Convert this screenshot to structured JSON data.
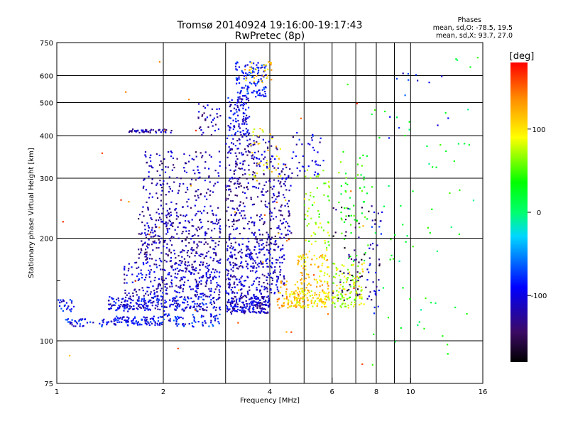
{
  "header": {
    "title": "Tromsø 20140924 19:16:00-19:17:43",
    "subtitle": "RwPretec (8p)",
    "stats_heading": "Phases",
    "stats_o": "mean, sd,O: -78.5, 19.5",
    "stats_x": "mean, sd,X:  93.7, 27.0"
  },
  "chart_data": {
    "type": "scatter",
    "xlabel": "Frequency [MHz]",
    "ylabel": "Stationary phase Virtual Height [km]",
    "x_scale": "log",
    "y_scale": "log",
    "xlim": [
      1,
      16
    ],
    "ylim": [
      75,
      750
    ],
    "x_ticks": [
      1,
      2,
      4,
      6,
      8,
      10,
      16
    ],
    "x_ticks_minor": [
      3,
      5,
      7,
      9
    ],
    "y_ticks": [
      75,
      100,
      200,
      300,
      400,
      500,
      600,
      750
    ],
    "y_ticks_minor": [
      150
    ],
    "grid": true,
    "colorbar": {
      "label": "[deg]",
      "range": [
        -180,
        180
      ],
      "ticks": [
        100,
        0,
        -100
      ]
    },
    "clusters": [
      {
        "x": [
          1.0,
          1.13
        ],
        "y": [
          122,
          132
        ],
        "phase": -95,
        "count": 25
      },
      {
        "x": [
          1.05,
          1.45
        ],
        "y": [
          110,
          116
        ],
        "phase": -90,
        "count": 45
      },
      {
        "x": [
          1.45,
          2.0
        ],
        "y": [
          111,
          118
        ],
        "phase": -95,
        "count": 90
      },
      {
        "x": [
          2.0,
          2.9
        ],
        "y": [
          110,
          120
        ],
        "phase": -90,
        "count": 70
      },
      {
        "x": [
          1.4,
          2.9
        ],
        "y": [
          122,
          135
        ],
        "phase": -100,
        "count": 260
      },
      {
        "x": [
          1.55,
          2.9
        ],
        "y": [
          135,
          170
        ],
        "phase": -110,
        "count": 280
      },
      {
        "x": [
          1.7,
          2.9
        ],
        "y": [
          170,
          240
        ],
        "phase": -120,
        "count": 300
      },
      {
        "x": [
          1.75,
          2.9
        ],
        "y": [
          240,
          360
        ],
        "phase": -118,
        "count": 170
      },
      {
        "x": [
          1.6,
          2.15
        ],
        "y": [
          408,
          418
        ],
        "phase": -120,
        "count": 45
      },
      {
        "x": [
          2.5,
          2.9
        ],
        "y": [
          400,
          500
        ],
        "phase": -115,
        "count": 35
      },
      {
        "x": [
          3.0,
          4.0
        ],
        "y": [
          120,
          135
        ],
        "phase": -110,
        "count": 200
      },
      {
        "x": [
          3.0,
          4.4
        ],
        "y": [
          135,
          200
        ],
        "phase": -112,
        "count": 320
      },
      {
        "x": [
          3.0,
          4.6
        ],
        "y": [
          200,
          330
        ],
        "phase": -120,
        "count": 280
      },
      {
        "x": [
          3.0,
          4.2
        ],
        "y": [
          330,
          400
        ],
        "phase": -115,
        "count": 90
      },
      {
        "x": [
          3.05,
          3.5
        ],
        "y": [
          400,
          520
        ],
        "phase": -100,
        "count": 110
      },
      {
        "x": [
          3.2,
          3.9
        ],
        "y": [
          520,
          660
        ],
        "phase": -85,
        "count": 120
      },
      {
        "x": [
          3.4,
          4.1
        ],
        "y": [
          570,
          660
        ],
        "phase": 110,
        "count": 30
      },
      {
        "x": [
          3.5,
          4.3
        ],
        "y": [
          300,
          420
        ],
        "phase": 100,
        "count": 35
      },
      {
        "x": [
          4.2,
          5.0
        ],
        "y": [
          125,
          150
        ],
        "phase": 120,
        "count": 60
      },
      {
        "x": [
          4.5,
          5.9
        ],
        "y": [
          125,
          140
        ],
        "phase": 100,
        "count": 110
      },
      {
        "x": [
          4.8,
          5.9
        ],
        "y": [
          140,
          180
        ],
        "phase": 110,
        "count": 90
      },
      {
        "x": [
          5.0,
          5.9
        ],
        "y": [
          180,
          320
        ],
        "phase": 70,
        "count": 60
      },
      {
        "x": [
          4.6,
          5.7
        ],
        "y": [
          300,
          410
        ],
        "phase": -105,
        "count": 40
      },
      {
        "x": [
          6.0,
          7.4
        ],
        "y": [
          125,
          170
        ],
        "phase": 80,
        "count": 120
      },
      {
        "x": [
          6.2,
          7.6
        ],
        "y": [
          170,
          360
        ],
        "phase": 40,
        "count": 55
      },
      {
        "x": [
          6.0,
          8.2
        ],
        "y": [
          130,
          250
        ],
        "phase": -145,
        "count": 60
      },
      {
        "x": [
          7.5,
          8.3
        ],
        "y": [
          120,
          260
        ],
        "phase": -100,
        "count": 30
      },
      {
        "x": [
          6.5,
          15.5
        ],
        "y": [
          80,
          700
        ],
        "phase": 20,
        "count": 75
      },
      {
        "x": [
          1.0,
          7.5
        ],
        "y": [
          85,
          700
        ],
        "phase": 140,
        "count": 45
      },
      {
        "x": [
          8.5,
          13.0
        ],
        "y": [
          380,
          620
        ],
        "phase": -90,
        "count": 14
      }
    ]
  }
}
